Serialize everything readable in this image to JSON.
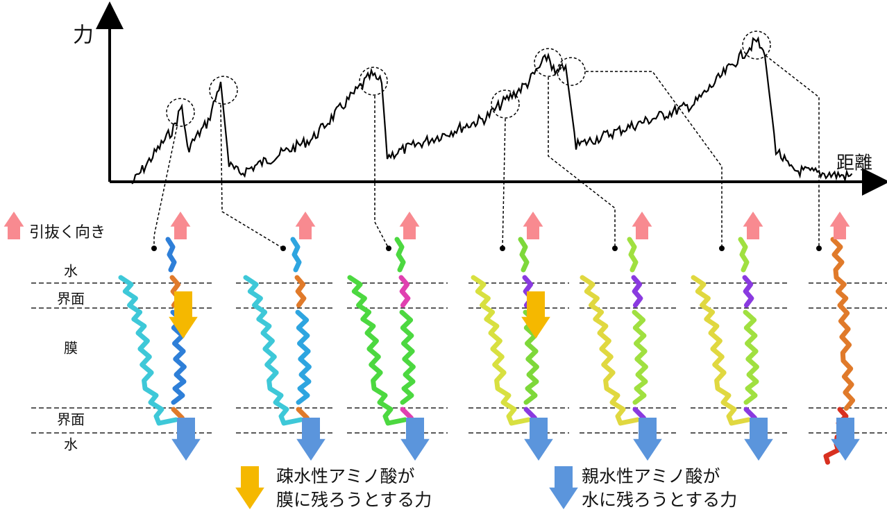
{
  "axis": {
    "y_label": "力",
    "x_label": "距離"
  },
  "legend": {
    "pull_direction": "引抜く向き",
    "hydrophobic": [
      "疎水性アミノ酸が",
      "膜に残ろうとする力"
    ],
    "hydrophilic": [
      "親水性アミノ酸が",
      "水に残ろうとする力"
    ]
  },
  "layers": [
    "水",
    "界面",
    "膜",
    "界面",
    "水"
  ]
}
